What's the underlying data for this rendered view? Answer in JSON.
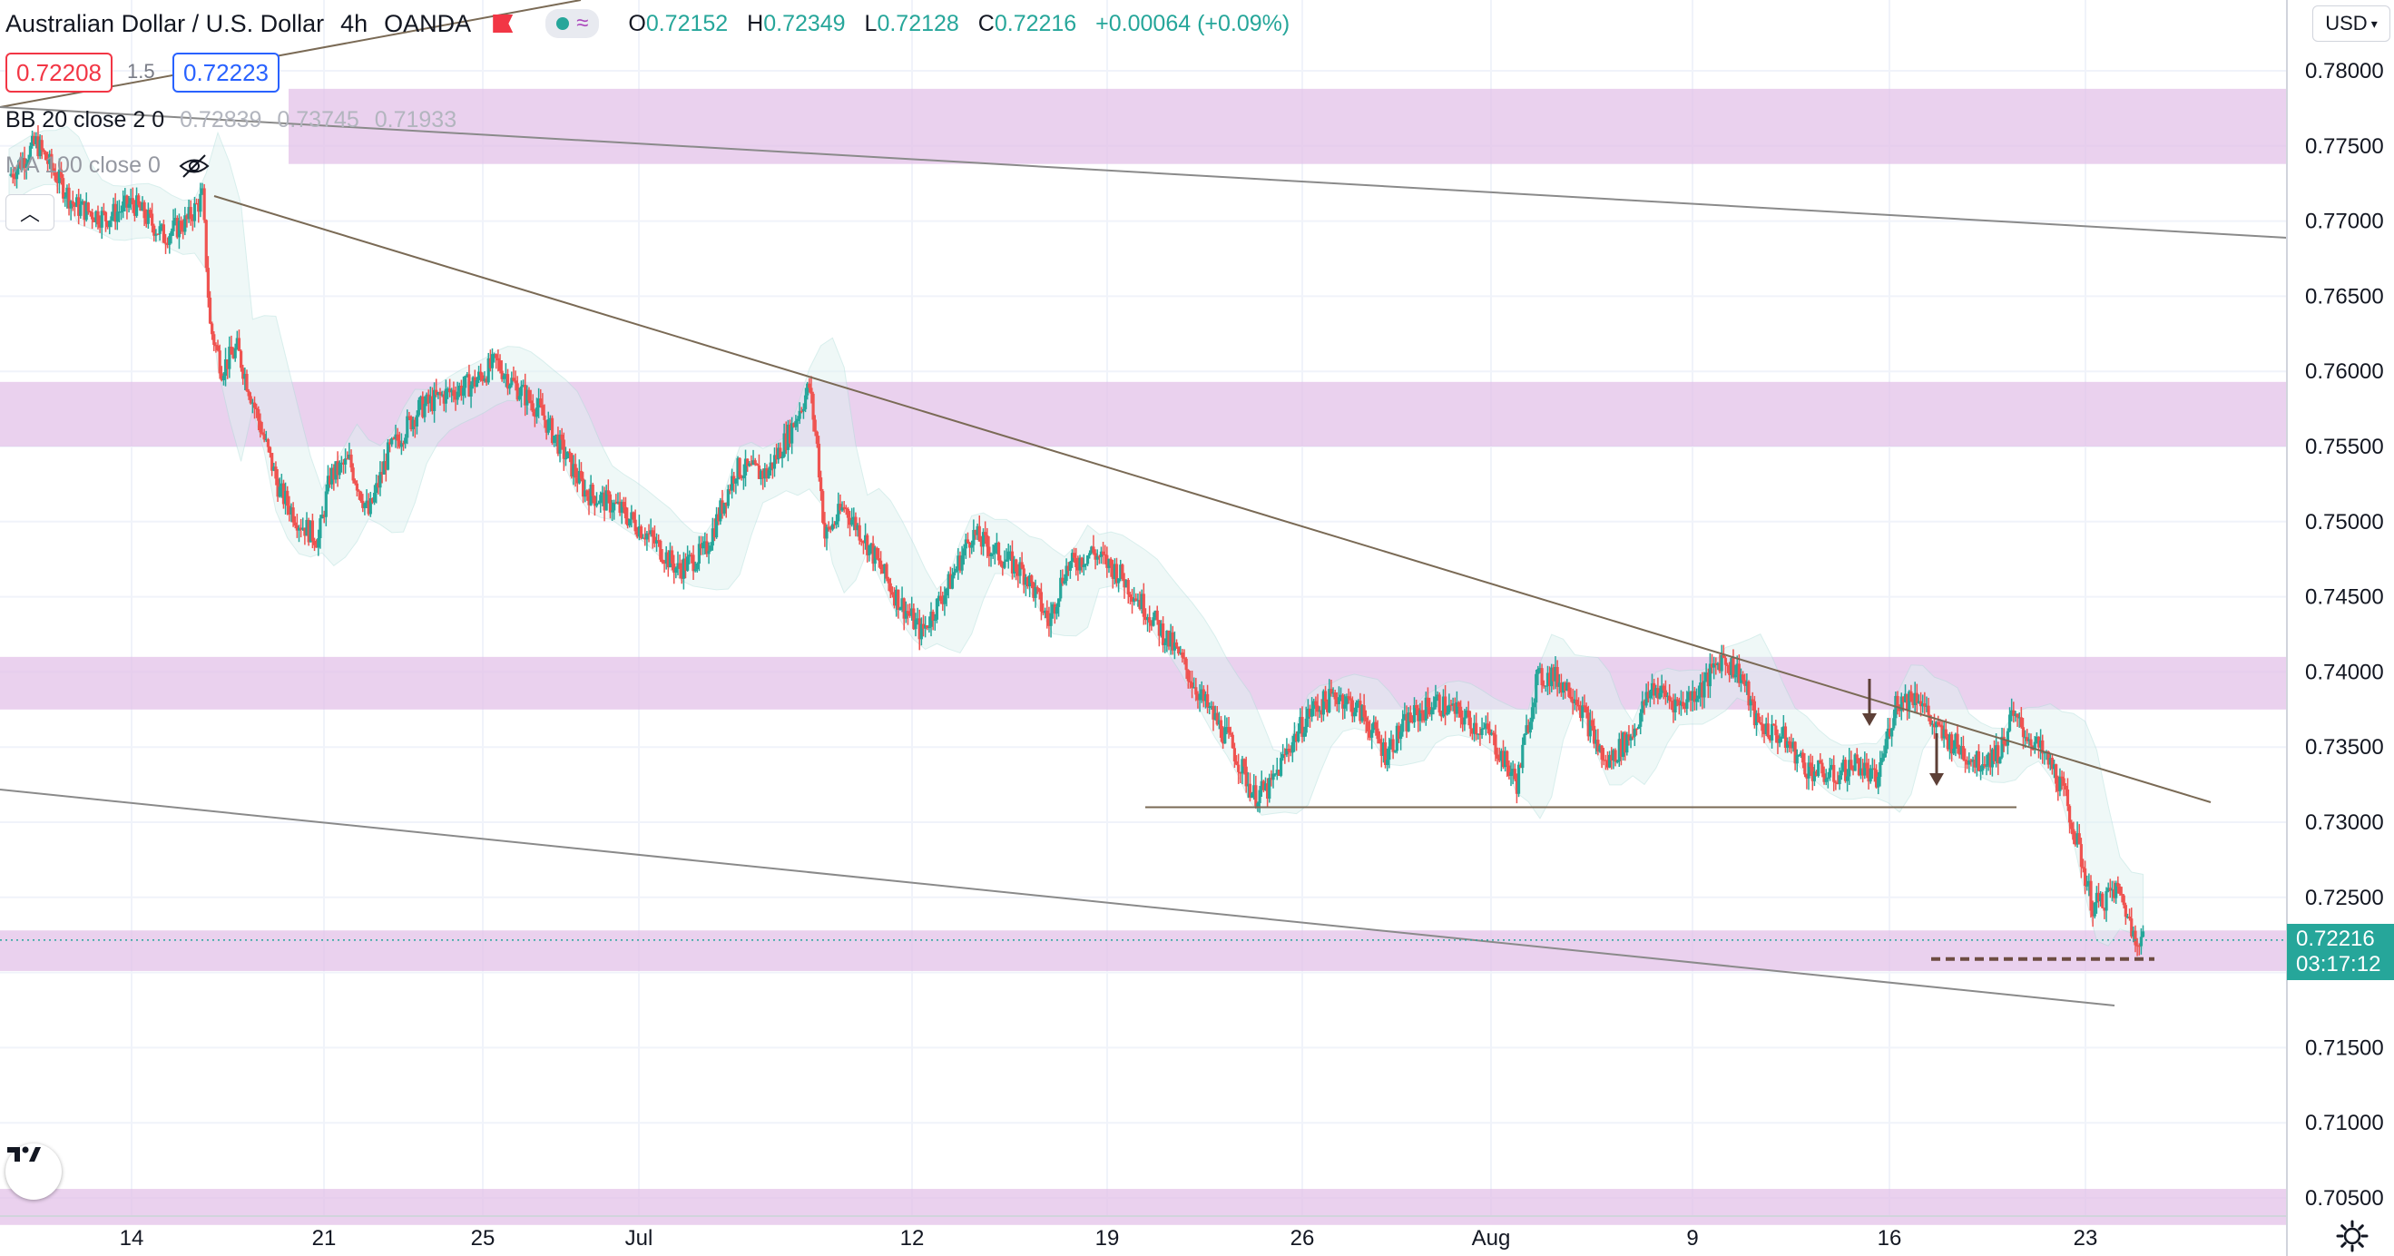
{
  "header": {
    "symbol": "Australian Dollar / U.S. Dollar",
    "interval": "4h",
    "broker": "OANDA",
    "ohlc": {
      "o_label": "O",
      "o": "0.72152",
      "h_label": "H",
      "h": "0.72349",
      "l_label": "L",
      "l": "0.72128",
      "c_label": "C",
      "c": "0.72216",
      "change": "+0.00064 (+0.09%)"
    }
  },
  "trade": {
    "sell": "0.72208",
    "spread": "1.5",
    "buy": "0.72223"
  },
  "indicators": {
    "bb_label": "BB 20 close 2 0",
    "bb_values": [
      "0.72839",
      "0.73745",
      "0.71933"
    ],
    "ma_label": "MA 100 close 0"
  },
  "currency": "USD",
  "last_price": {
    "value": "0.72216",
    "countdown": "03:17:12"
  },
  "colors": {
    "up": "#26a69a",
    "down": "#ef5350",
    "zone": "#e1bee7",
    "trend": "#7a6a55",
    "arrow": "#5d4037"
  },
  "chart_data": {
    "type": "candlestick",
    "y_ticks": [
      "0.78000",
      "0.77500",
      "0.77000",
      "0.76500",
      "0.76000",
      "0.75500",
      "0.75000",
      "0.74500",
      "0.74000",
      "0.73500",
      "0.73000",
      "0.72500",
      "0.72000",
      "0.71500",
      "0.71000",
      "0.70500"
    ],
    "x_ticks": [
      "14",
      "21",
      "25",
      "Jul",
      "12",
      "19",
      "26",
      "Aug",
      "9",
      "16",
      "23"
    ],
    "ylim": [
      0.7038,
      0.7822
    ],
    "support_resistance_zones": [
      [
        0.7738,
        0.7788
      ],
      [
        0.755,
        0.7593
      ],
      [
        0.7375,
        0.741
      ],
      [
        0.7201,
        0.7228
      ],
      [
        0.7032,
        0.7056
      ]
    ],
    "horizontal_level": 0.731,
    "target_level": 0.7209,
    "last_close": 0.72216,
    "price_path": [
      [
        0,
        0.773
      ],
      [
        14,
        0.7752
      ],
      [
        34,
        0.771
      ],
      [
        50,
        0.7702
      ],
      [
        64,
        0.7712
      ],
      [
        80,
        0.769
      ],
      [
        92,
        0.77
      ],
      [
        100,
        0.7716
      ],
      [
        104,
        0.763
      ],
      [
        110,
        0.7602
      ],
      [
        118,
        0.7615
      ],
      [
        128,
        0.7572
      ],
      [
        140,
        0.752
      ],
      [
        150,
        0.75
      ],
      [
        160,
        0.7488
      ],
      [
        166,
        0.753
      ],
      [
        176,
        0.754
      ],
      [
        186,
        0.7505
      ],
      [
        196,
        0.7545
      ],
      [
        212,
        0.7575
      ],
      [
        226,
        0.7585
      ],
      [
        240,
        0.7592
      ],
      [
        252,
        0.7606
      ],
      [
        262,
        0.759
      ],
      [
        274,
        0.7575
      ],
      [
        286,
        0.7548
      ],
      [
        298,
        0.752
      ],
      [
        314,
        0.751
      ],
      [
        330,
        0.7492
      ],
      [
        346,
        0.7468
      ],
      [
        360,
        0.748
      ],
      [
        376,
        0.7535
      ],
      [
        392,
        0.7532
      ],
      [
        404,
        0.756
      ],
      [
        414,
        0.759
      ],
      [
        418,
        0.755
      ],
      [
        422,
        0.749
      ],
      [
        432,
        0.751
      ],
      [
        442,
        0.749
      ],
      [
        458,
        0.7452
      ],
      [
        472,
        0.7426
      ],
      [
        486,
        0.7458
      ],
      [
        498,
        0.7492
      ],
      [
        512,
        0.7478
      ],
      [
        526,
        0.7465
      ],
      [
        538,
        0.7433
      ],
      [
        546,
        0.7468
      ],
      [
        560,
        0.748
      ],
      [
        574,
        0.7466
      ],
      [
        588,
        0.7442
      ],
      [
        604,
        0.7413
      ],
      [
        618,
        0.738
      ],
      [
        632,
        0.7352
      ],
      [
        644,
        0.7318
      ],
      [
        652,
        0.7322
      ],
      [
        662,
        0.735
      ],
      [
        674,
        0.7375
      ],
      [
        688,
        0.7385
      ],
      [
        700,
        0.7372
      ],
      [
        712,
        0.7346
      ],
      [
        724,
        0.7368
      ],
      [
        738,
        0.738
      ],
      [
        750,
        0.7372
      ],
      [
        766,
        0.7358
      ],
      [
        780,
        0.7326
      ],
      [
        790,
        0.7394
      ],
      [
        798,
        0.7398
      ],
      [
        810,
        0.7386
      ],
      [
        826,
        0.7338
      ],
      [
        840,
        0.736
      ],
      [
        850,
        0.739
      ],
      [
        864,
        0.7378
      ],
      [
        876,
        0.739
      ],
      [
        886,
        0.741
      ],
      [
        896,
        0.7398
      ],
      [
        904,
        0.7366
      ],
      [
        918,
        0.7356
      ],
      [
        930,
        0.7336
      ],
      [
        944,
        0.733
      ],
      [
        956,
        0.734
      ],
      [
        966,
        0.7326
      ],
      [
        976,
        0.738
      ],
      [
        988,
        0.7385
      ],
      [
        996,
        0.7362
      ],
      [
        1008,
        0.735
      ],
      [
        1018,
        0.734
      ],
      [
        1030,
        0.7347
      ],
      [
        1036,
        0.737
      ],
      [
        1048,
        0.7352
      ],
      [
        1058,
        0.7334
      ],
      [
        1064,
        0.7315
      ],
      [
        1072,
        0.7275
      ],
      [
        1078,
        0.7243
      ],
      [
        1090,
        0.7255
      ],
      [
        1094,
        0.7247
      ],
      [
        1098,
        0.7228
      ],
      [
        1104,
        0.7222
      ]
    ]
  }
}
